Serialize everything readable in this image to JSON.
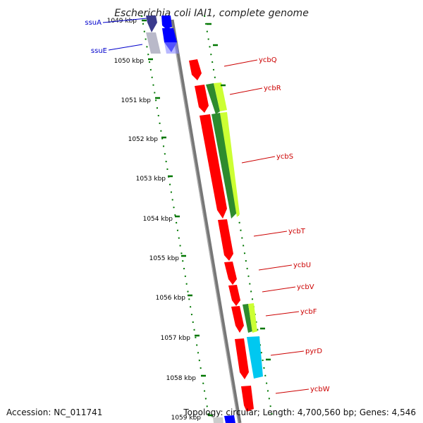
{
  "title": "Escherichia coli IAI1, complete genome",
  "accession_text": "Accession: NC_011741",
  "summary_text": "Topology: circular; Length: 4,700,560 bp; Genes: 4,546",
  "colors": {
    "backbone": "#777777",
    "reverse_cds": "#ff0000",
    "forward_green_dark": "#2e8b2e",
    "forward_green_light": "#ccff33",
    "forward_cyan": "#00c8f0",
    "ssu_blue": "#0000ff",
    "ssu_navy": "#3a3a8c",
    "tick_green": "#007700",
    "red_label": "#cc0000",
    "blue_label": "#0000cc"
  },
  "ruler": {
    "labels": [
      "1049 kbp",
      "1050 kbp",
      "1051 kbp",
      "1052 kbp",
      "1053 kbp",
      "1054 kbp",
      "1055 kbp",
      "1056 kbp",
      "1057 kbp",
      "1058 kbp",
      "1059 kbp"
    ]
  },
  "gene_labels_right": [
    "ycbQ",
    "ycbR",
    "ycbS",
    "ycbT",
    "ycbU",
    "ycbV",
    "ycbF",
    "pyrD",
    "ycbW"
  ],
  "gene_labels_left": [
    "ssuA",
    "ssuE"
  ]
}
